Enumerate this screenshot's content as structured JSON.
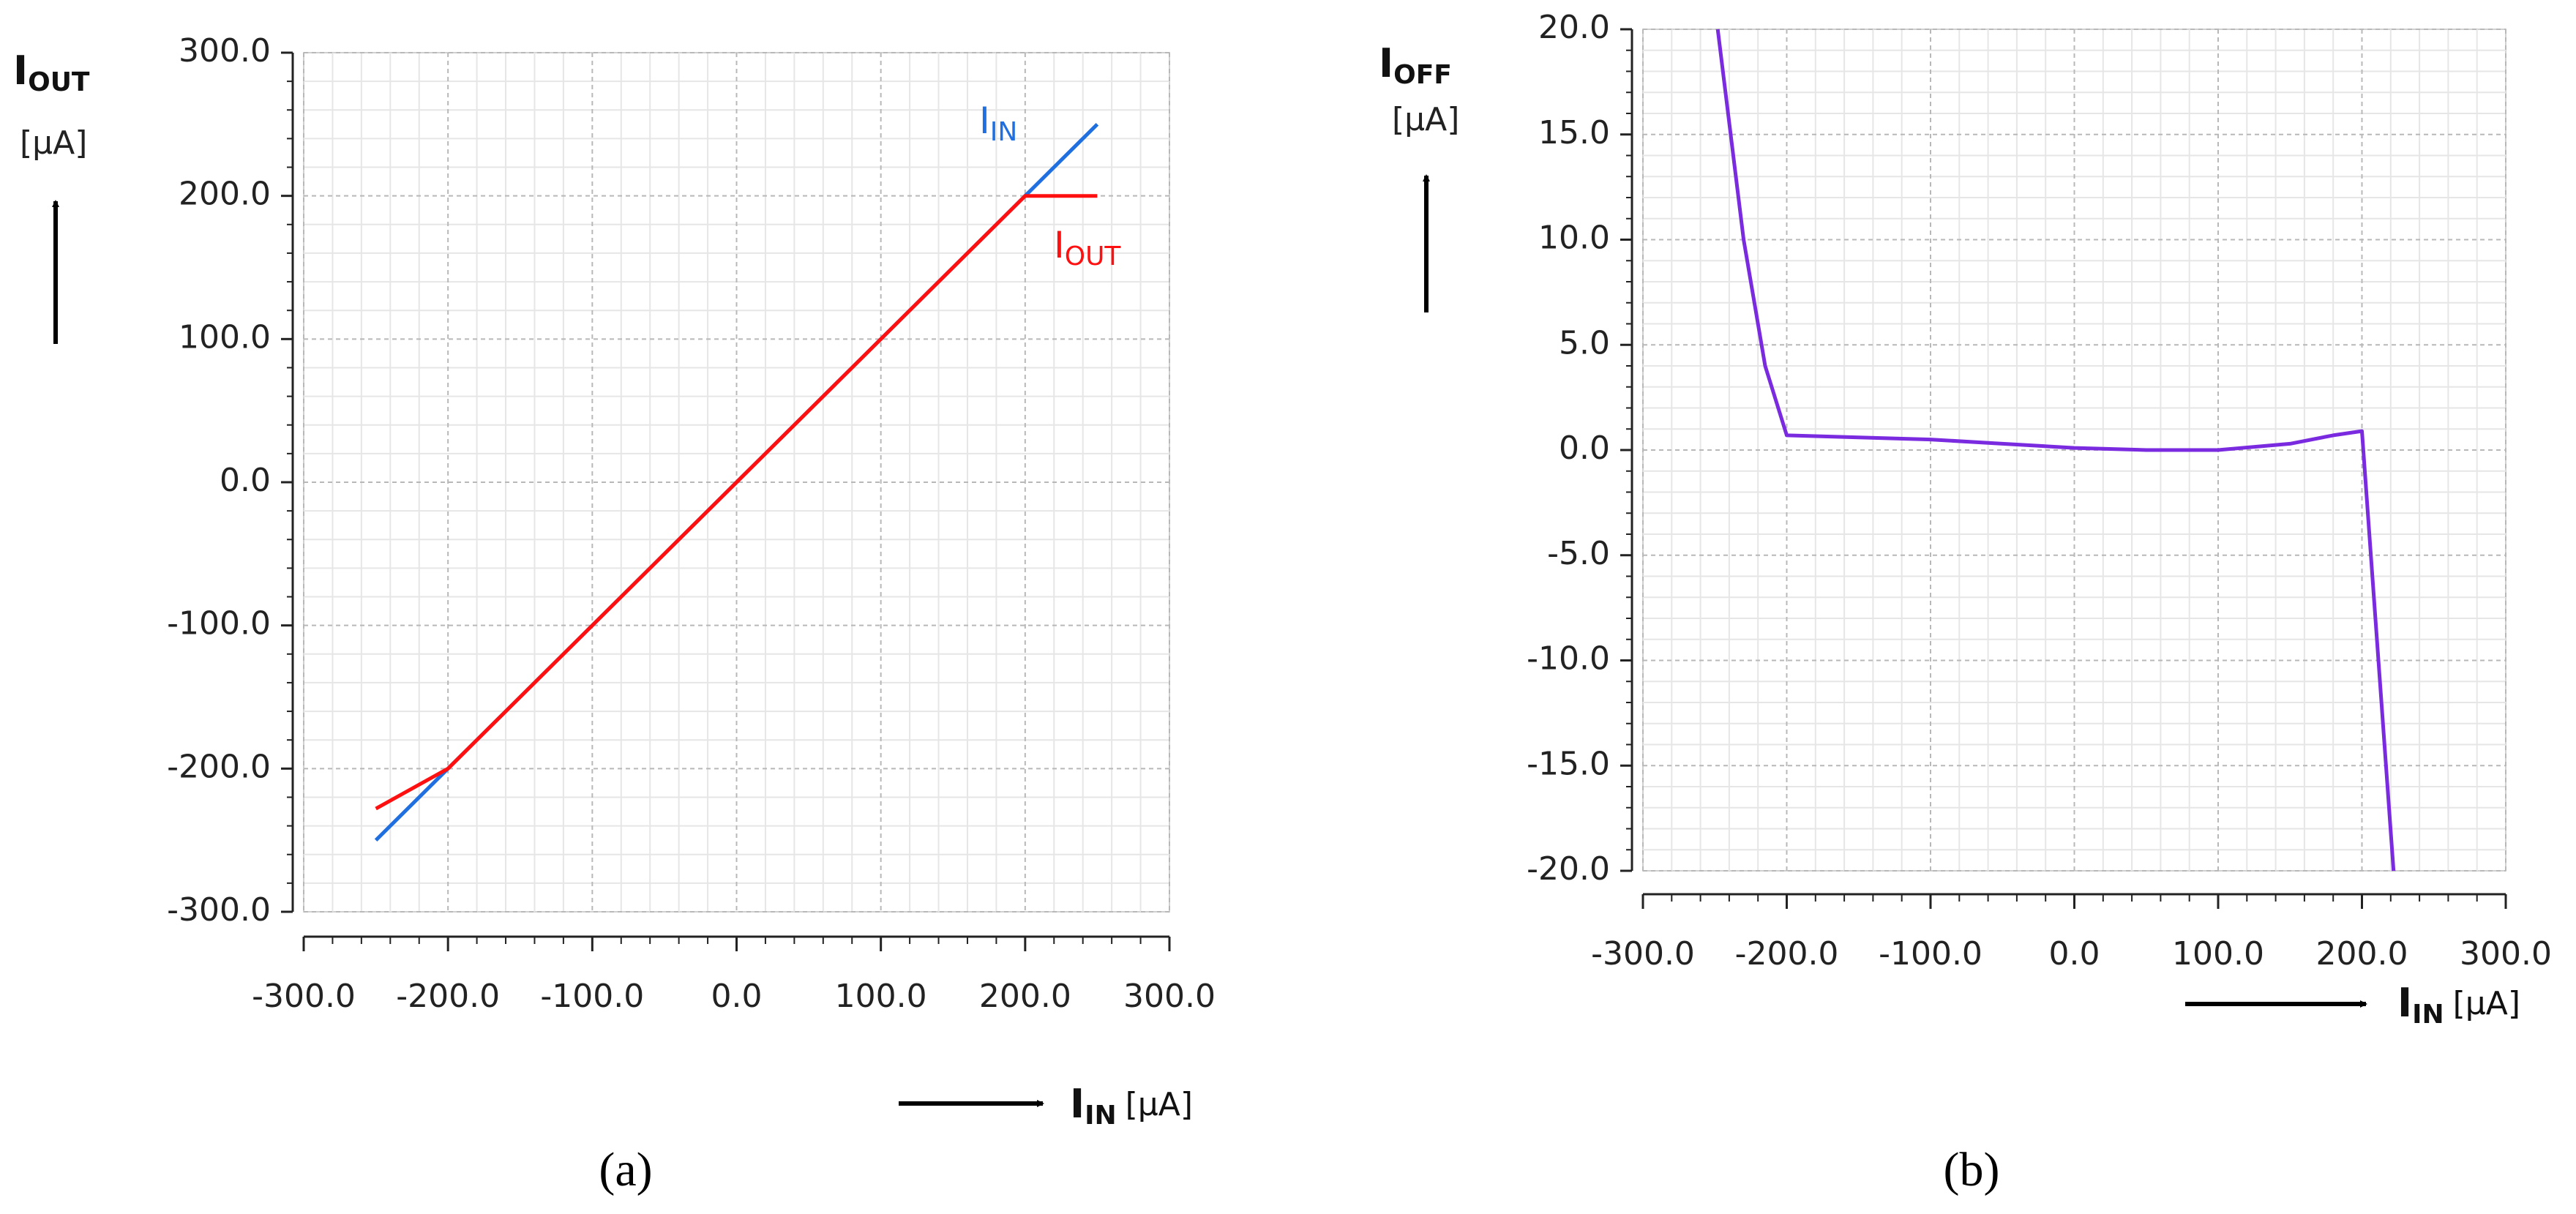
{
  "chart_data": [
    {
      "type": "line",
      "caption": "(a)",
      "ylabel": {
        "symbol": "I",
        "sub": "OUT",
        "unit": "[µA]"
      },
      "xlabel": {
        "symbol": "I",
        "sub": "IN",
        "unit": "[µA]"
      },
      "xlim": [
        -300,
        300
      ],
      "xticks": [
        {
          "value": -300,
          "label": "-300.0"
        },
        {
          "value": -200,
          "label": "-200.0"
        },
        {
          "value": -100,
          "label": "-100.0"
        },
        {
          "value": 0,
          "label": "0.0"
        },
        {
          "value": 100,
          "label": "100.0"
        },
        {
          "value": 200,
          "label": "200.0"
        },
        {
          "value": 300,
          "label": "300.0"
        }
      ],
      "ylim": [
        -300,
        300
      ],
      "yticks": [
        {
          "value": -300,
          "label": "-300.0"
        },
        {
          "value": -200,
          "label": "-200.0"
        },
        {
          "value": -100,
          "label": "-100.0"
        },
        {
          "value": 0,
          "label": "0.0"
        },
        {
          "value": 100,
          "label": "100.0"
        },
        {
          "value": 200,
          "label": "200.0"
        },
        {
          "value": 300,
          "label": "300.0"
        }
      ],
      "grid": true,
      "series": [
        {
          "name": "I",
          "name_sub": "IN",
          "color": "#1f6fe0",
          "x": [
            -250,
            -200,
            200,
            250
          ],
          "values": [
            -250,
            -200,
            200,
            250
          ]
        },
        {
          "name": "I",
          "name_sub": "OUT",
          "color": "#ff1010",
          "x": [
            -250,
            -200,
            200,
            250
          ],
          "values": [
            -228,
            -200,
            200,
            200
          ]
        }
      ]
    },
    {
      "type": "line",
      "caption": "(b)",
      "ylabel": {
        "symbol": "I",
        "sub": "OFF",
        "unit": "[µA]"
      },
      "xlabel": {
        "symbol": "I",
        "sub": "IN",
        "unit": "[µA]"
      },
      "xlim": [
        -300,
        300
      ],
      "xticks": [
        {
          "value": -300,
          "label": "-300.0"
        },
        {
          "value": -200,
          "label": "-200.0"
        },
        {
          "value": -100,
          "label": "-100.0"
        },
        {
          "value": 0,
          "label": "0.0"
        },
        {
          "value": 100,
          "label": "100.0"
        },
        {
          "value": 200,
          "label": "200.0"
        },
        {
          "value": 300,
          "label": "300.0"
        }
      ],
      "ylim": [
        -20,
        20
      ],
      "yticks": [
        {
          "value": -20,
          "label": "-20.0"
        },
        {
          "value": -15,
          "label": "-15.0"
        },
        {
          "value": -10,
          "label": "-10.0"
        },
        {
          "value": -5,
          "label": "-5.0"
        },
        {
          "value": 0,
          "label": "0.0"
        },
        {
          "value": 5,
          "label": "5.0"
        },
        {
          "value": 10,
          "label": "10.0"
        },
        {
          "value": 15,
          "label": "15.0"
        },
        {
          "value": 20,
          "label": "20.0"
        }
      ],
      "grid": true,
      "series": [
        {
          "color": "#7a2be0",
          "x": [
            -248,
            -230,
            -215,
            -200,
            -150,
            -100,
            -50,
            0,
            50,
            100,
            150,
            180,
            200,
            222
          ],
          "values": [
            20,
            10,
            4,
            0.7,
            0.6,
            0.5,
            0.3,
            0.1,
            0,
            0,
            0.3,
            0.7,
            0.9,
            -20
          ]
        }
      ]
    }
  ]
}
